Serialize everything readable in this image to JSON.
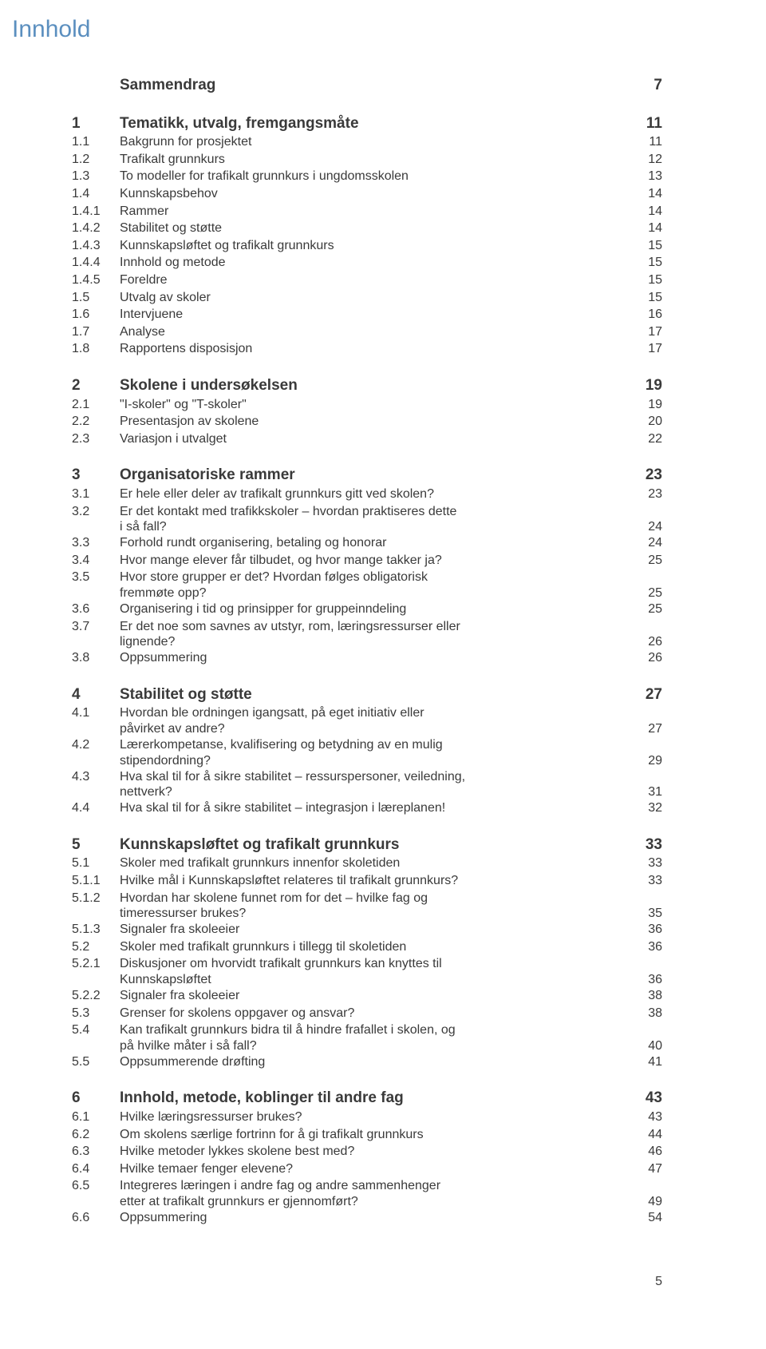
{
  "doc_title": "Innhold",
  "footer_pageno": "5",
  "groups": [
    {
      "rows": [
        {
          "style": "first-bold",
          "num": "",
          "label": "Sammendrag",
          "page": "7"
        }
      ]
    },
    {
      "rows": [
        {
          "style": "first-bold",
          "num": "1",
          "label": "Tematikk, utvalg, fremgangsmåte",
          "page": "11"
        },
        {
          "style": "sub",
          "num": "1.1",
          "label": "Bakgrunn for prosjektet",
          "page": "11"
        },
        {
          "style": "sub",
          "num": "1.2",
          "label": "Trafikalt grunnkurs",
          "page": "12"
        },
        {
          "style": "sub",
          "num": "1.3",
          "label": "To modeller for trafikalt grunnkurs i ungdomsskolen",
          "page": "13"
        },
        {
          "style": "sub",
          "num": "1.4",
          "label": "Kunnskapsbehov",
          "page": "14"
        },
        {
          "style": "sub",
          "num": "1.4.1",
          "label": "Rammer",
          "page": "14"
        },
        {
          "style": "sub",
          "num": "1.4.2",
          "label": "Stabilitet og støtte",
          "page": "14"
        },
        {
          "style": "sub",
          "num": "1.4.3",
          "label": "Kunnskapsløftet og trafikalt grunnkurs",
          "page": "15"
        },
        {
          "style": "sub",
          "num": "1.4.4",
          "label": "Innhold og metode",
          "page": "15"
        },
        {
          "style": "sub",
          "num": "1.4.5",
          "label": "Foreldre",
          "page": "15"
        },
        {
          "style": "sub",
          "num": "1.5",
          "label": "Utvalg av skoler",
          "page": "15"
        },
        {
          "style": "sub",
          "num": "1.6",
          "label": "Intervjuene",
          "page": "16"
        },
        {
          "style": "sub",
          "num": "1.7",
          "label": "Analyse",
          "page": "17"
        },
        {
          "style": "sub",
          "num": "1.8",
          "label": "Rapportens disposisjon",
          "page": "17"
        }
      ]
    },
    {
      "rows": [
        {
          "style": "chap-bold",
          "num": "2",
          "label": "Skolene i undersøkelsen",
          "page": "19"
        },
        {
          "style": "sub",
          "num": "2.1",
          "label": "\"I-skoler\" og \"T-skoler\"",
          "page": "19"
        },
        {
          "style": "sub",
          "num": "2.2",
          "label": "Presentasjon av skolene",
          "page": "20"
        },
        {
          "style": "sub",
          "num": "2.3",
          "label": "Variasjon i utvalget",
          "page": "22"
        }
      ]
    },
    {
      "rows": [
        {
          "style": "chap-bold",
          "num": "3",
          "label": "Organisatoriske rammer",
          "page": "23"
        },
        {
          "style": "sub",
          "num": "3.1",
          "label": "Er hele eller deler av trafikalt grunnkurs gitt ved skolen?",
          "page": "23"
        },
        {
          "style": "sub",
          "num": "3.2",
          "label": "Er det kontakt med trafikkskoler – hvordan praktiseres dette",
          "page": ""
        },
        {
          "style": "cont",
          "num": "",
          "label": "i så fall?",
          "page": "24"
        },
        {
          "style": "sub",
          "num": "3.3",
          "label": "Forhold rundt organisering, betaling og honorar",
          "page": "24"
        },
        {
          "style": "sub",
          "num": "3.4",
          "label": "Hvor mange elever får tilbudet, og hvor mange takker ja?",
          "page": "25"
        },
        {
          "style": "sub",
          "num": "3.5",
          "label": "Hvor store grupper er det? Hvordan følges obligatorisk",
          "page": ""
        },
        {
          "style": "cont",
          "num": "",
          "label": "fremmøte opp?",
          "page": "25"
        },
        {
          "style": "sub",
          "num": "3.6",
          "label": "Organisering i tid og prinsipper for gruppeinndeling",
          "page": "25"
        },
        {
          "style": "sub",
          "num": "3.7",
          "label": "Er det noe som savnes av utstyr, rom, læringsressurser eller",
          "page": ""
        },
        {
          "style": "cont",
          "num": "",
          "label": "lignende?",
          "page": "26"
        },
        {
          "style": "sub",
          "num": "3.8",
          "label": "Oppsummering",
          "page": "26"
        }
      ]
    },
    {
      "rows": [
        {
          "style": "chap-bold",
          "num": "4",
          "label": "Stabilitet og støtte",
          "page": "27"
        },
        {
          "style": "sub",
          "num": "4.1",
          "label": "Hvordan ble ordningen igangsatt, på eget initiativ eller",
          "page": ""
        },
        {
          "style": "cont",
          "num": "",
          "label": "påvirket av andre?",
          "page": "27"
        },
        {
          "style": "sub",
          "num": "4.2",
          "label": "Lærerkompetanse, kvalifisering og betydning av en mulig",
          "page": ""
        },
        {
          "style": "cont",
          "num": "",
          "label": "stipendordning?",
          "page": "29"
        },
        {
          "style": "sub",
          "num": "4.3",
          "label": "Hva skal til for å sikre stabilitet – ressurspersoner, veiledning,",
          "page": ""
        },
        {
          "style": "cont",
          "num": "",
          "label": "nettverk?",
          "page": "31"
        },
        {
          "style": "sub",
          "num": "4.4",
          "label": "Hva skal til for å sikre stabilitet – integrasjon i læreplanen!",
          "page": "32"
        }
      ]
    },
    {
      "rows": [
        {
          "style": "chap-bold",
          "num": "5",
          "label": "Kunnskapsløftet og trafikalt grunnkurs",
          "page": "33"
        },
        {
          "style": "sub",
          "num": "5.1",
          "label": "Skoler med trafikalt grunnkurs innenfor skoletiden",
          "page": "33"
        },
        {
          "style": "sub",
          "num": "5.1.1",
          "label": "Hvilke mål i Kunnskapsløftet relateres til trafikalt grunnkurs?",
          "page": "33"
        },
        {
          "style": "sub",
          "num": "5.1.2",
          "label": "Hvordan har skolene funnet rom for det – hvilke fag og",
          "page": ""
        },
        {
          "style": "cont",
          "num": "",
          "label": "timeressurser brukes?",
          "page": "35"
        },
        {
          "style": "sub",
          "num": "5.1.3",
          "label": "Signaler fra skoleeier",
          "page": "36"
        },
        {
          "style": "sub",
          "num": "5.2",
          "label": "Skoler med trafikalt grunnkurs i tillegg til skoletiden",
          "page": "36"
        },
        {
          "style": "sub",
          "num": "5.2.1",
          "label": "Diskusjoner om hvorvidt trafikalt grunnkurs kan knyttes til",
          "page": ""
        },
        {
          "style": "cont",
          "num": "",
          "label": "Kunnskapsløftet",
          "page": "36"
        },
        {
          "style": "sub",
          "num": "5.2.2",
          "label": "Signaler fra skoleeier",
          "page": "38"
        },
        {
          "style": "sub",
          "num": "5.3",
          "label": "Grenser for skolens oppgaver og ansvar?",
          "page": "38"
        },
        {
          "style": "sub",
          "num": "5.4",
          "label": "Kan trafikalt grunnkurs bidra til å hindre frafallet i skolen, og",
          "page": ""
        },
        {
          "style": "cont",
          "num": "",
          "label": "på hvilke måter i så fall?",
          "page": "40"
        },
        {
          "style": "sub",
          "num": "5.5",
          "label": "Oppsummerende drøfting",
          "page": "41"
        }
      ]
    },
    {
      "rows": [
        {
          "style": "chap-bold",
          "num": "6",
          "label": "Innhold, metode, koblinger til andre fag",
          "page": "43"
        },
        {
          "style": "sub",
          "num": "6.1",
          "label": "Hvilke læringsressurser brukes?",
          "page": "43"
        },
        {
          "style": "sub",
          "num": "6.2",
          "label": "Om skolens særlige fortrinn for å gi trafikalt grunnkurs",
          "page": "44"
        },
        {
          "style": "sub",
          "num": "6.3",
          "label": "Hvilke metoder lykkes skolene best med?",
          "page": "46"
        },
        {
          "style": "sub",
          "num": "6.4",
          "label": "Hvilke temaer fenger elevene?",
          "page": "47"
        },
        {
          "style": "sub",
          "num": "6.5",
          "label": "Integreres læringen i andre fag og andre sammenhenger",
          "page": ""
        },
        {
          "style": "cont",
          "num": "",
          "label": "etter at trafikalt grunnkurs er gjennomført?",
          "page": "49"
        },
        {
          "style": "sub",
          "num": "6.6",
          "label": "Oppsummering",
          "page": "54"
        }
      ]
    }
  ]
}
